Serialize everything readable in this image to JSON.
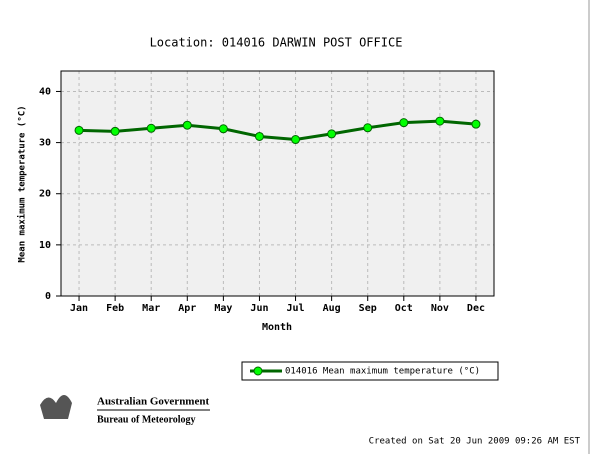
{
  "chart_data": {
    "type": "line",
    "title": "Location: 014016 DARWIN POST OFFICE",
    "x_label": "Month",
    "y_label": "Mean maximum temperature (°C)",
    "categories": [
      "Jan",
      "Feb",
      "Mar",
      "Apr",
      "May",
      "Jun",
      "Jul",
      "Aug",
      "Sep",
      "Oct",
      "Nov",
      "Dec"
    ],
    "series": [
      {
        "name": "014016 Mean maximum temperature (°C)",
        "color": "#006600",
        "marker_color": "#00ff00",
        "values": [
          32.4,
          32.2,
          32.8,
          33.4,
          32.7,
          31.2,
          30.6,
          31.7,
          32.9,
          33.9,
          34.2,
          33.6
        ]
      }
    ],
    "ylim": [
      0,
      44
    ],
    "yticks": [
      0,
      10,
      20,
      30,
      40
    ],
    "grid": true,
    "legend": "bottom-right"
  },
  "branding": {
    "line1": "Australian Government",
    "line2": "Bureau of Meteorology"
  },
  "footer": "Created on Sat 20 Jun 2009 09:26 AM EST"
}
